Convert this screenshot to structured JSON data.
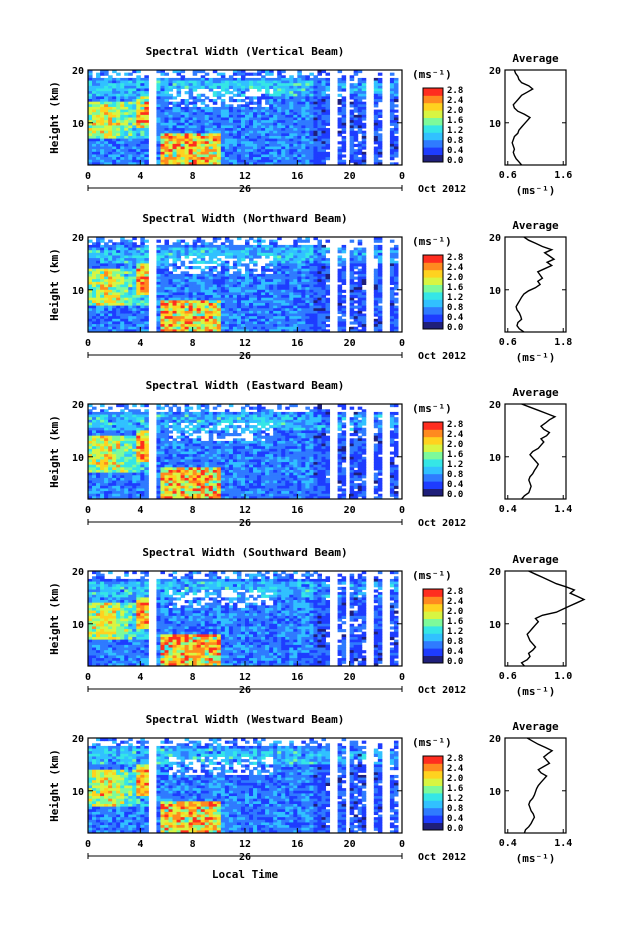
{
  "figure": {
    "xlabel": "Local Time",
    "date_label": "Oct 2012",
    "day_label": "26",
    "colorbar_unit": "(ms⁻¹)",
    "colorbar_ticks": [
      "0.0",
      "0.4",
      "0.8",
      "1.2",
      "1.6",
      "2.0",
      "2.4",
      "2.8"
    ],
    "colormap": [
      "#1f1f7a",
      "#1e3cff",
      "#2f7bff",
      "#31c1ff",
      "#35e6e6",
      "#7dfa9a",
      "#d8f542",
      "#ffd21f",
      "#ff8a1f",
      "#ff2d1f"
    ]
  },
  "chart_data": [
    {
      "type": "heatmap",
      "title": "Spectral Width (Vertical Beam)",
      "ylabel": "Height (km)",
      "xlim": [
        0,
        24
      ],
      "ylim": [
        2,
        20
      ],
      "xticks": [
        "0",
        "4",
        "8",
        "12",
        "16",
        "20",
        "0"
      ],
      "yticks": [
        "20",
        "10"
      ],
      "clim": [
        0,
        3.0
      ]
    },
    {
      "type": "line",
      "title": "Average",
      "xlabel": "(ms⁻¹)",
      "xticks": [
        "0.6",
        "1.6"
      ],
      "yticks": [
        "20",
        "10"
      ],
      "x": [
        0.85,
        0.8,
        0.75,
        0.72,
        0.7,
        0.72,
        0.7,
        0.68,
        0.7,
        0.72,
        0.78,
        0.8,
        0.85,
        0.9,
        0.95,
        1.0,
        0.9,
        0.78,
        0.72,
        0.7,
        0.75,
        0.8,
        0.85,
        0.95,
        1.05,
        0.98,
        0.85,
        0.8,
        0.78,
        0.74,
        0.72
      ],
      "y": [
        2,
        2.6,
        3.2,
        3.8,
        4.4,
        5,
        5.6,
        6.2,
        6.8,
        7.4,
        8,
        8.6,
        9.2,
        9.8,
        10.4,
        11,
        11.6,
        12.2,
        12.8,
        13.4,
        14,
        14.6,
        15.2,
        15.8,
        16.4,
        17,
        17.6,
        18.2,
        18.8,
        19.4,
        20
      ]
    },
    {
      "type": "heatmap",
      "title": "Spectral Width (Northward Beam)",
      "ylabel": "Height (km)",
      "xlim": [
        0,
        24
      ],
      "ylim": [
        2,
        20
      ],
      "xticks": [
        "0",
        "4",
        "8",
        "12",
        "16",
        "20",
        "0"
      ],
      "yticks": [
        "20",
        "10"
      ],
      "clim": [
        0,
        3.0
      ]
    },
    {
      "type": "line",
      "title": "Average",
      "xlabel": "(ms⁻¹)",
      "xticks": [
        "0.6",
        "1.8"
      ],
      "yticks": [
        "20",
        "10"
      ],
      "x": [
        0.95,
        0.85,
        0.8,
        0.82,
        0.9,
        0.88,
        0.85,
        0.8,
        0.78,
        0.82,
        0.86,
        0.9,
        0.95,
        1.05,
        1.2,
        1.3,
        1.25,
        1.35,
        1.3,
        1.25,
        1.4,
        1.55,
        1.45,
        1.6,
        1.5,
        1.4,
        1.55,
        1.35,
        1.2,
        1.05,
        0.95
      ],
      "y": [
        2,
        2.6,
        3.2,
        3.8,
        4.4,
        5,
        5.6,
        6.2,
        6.8,
        7.4,
        8,
        8.6,
        9.2,
        9.8,
        10.4,
        11,
        11.6,
        12.2,
        12.8,
        13.4,
        14,
        14.6,
        15.2,
        15.8,
        16.4,
        17,
        17.6,
        18.2,
        18.8,
        19.4,
        20
      ]
    },
    {
      "type": "heatmap",
      "title": "Spectral Width (Eastward Beam)",
      "ylabel": "Height (km)",
      "xlim": [
        0,
        24
      ],
      "ylim": [
        2,
        20
      ],
      "xticks": [
        "0",
        "4",
        "8",
        "12",
        "16",
        "20",
        "0"
      ],
      "yticks": [
        "20",
        "10"
      ],
      "clim": [
        0,
        3.0
      ]
    },
    {
      "type": "line",
      "title": "Average",
      "xlabel": "",
      "xticks": [
        "0.4",
        "1.4"
      ],
      "yticks": [
        "20",
        "10"
      ],
      "x": [
        0.65,
        0.7,
        0.78,
        0.8,
        0.82,
        0.8,
        0.78,
        0.8,
        0.85,
        0.88,
        0.92,
        0.95,
        0.9,
        0.85,
        0.8,
        0.85,
        0.95,
        1.0,
        1.05,
        1.0,
        1.1,
        1.15,
        1.05,
        1.0,
        1.08,
        1.15,
        1.25,
        1.1,
        0.95,
        0.8,
        0.65
      ],
      "y": [
        2,
        2.6,
        3.2,
        3.8,
        4.4,
        5,
        5.6,
        6.2,
        6.8,
        7.4,
        8,
        8.6,
        9.2,
        9.8,
        10.4,
        11,
        11.6,
        12.2,
        12.8,
        13.4,
        14,
        14.6,
        15.2,
        15.8,
        16.4,
        17,
        17.6,
        18.2,
        18.8,
        19.4,
        20
      ]
    },
    {
      "type": "heatmap",
      "title": "Spectral Width (Southward Beam)",
      "ylabel": "Height (km)",
      "xlim": [
        0,
        24
      ],
      "ylim": [
        2,
        20
      ],
      "xticks": [
        "0",
        "4",
        "8",
        "12",
        "16",
        "20",
        "0"
      ],
      "yticks": [
        "20",
        "10"
      ],
      "clim": [
        0,
        3.0
      ]
    },
    {
      "type": "line",
      "title": "Average",
      "xlabel": "(ms⁻¹)",
      "xticks": [
        "0.6",
        "1.0"
      ],
      "yticks": [
        "20",
        "10"
      ],
      "x": [
        0.72,
        0.7,
        0.74,
        0.76,
        0.75,
        0.78,
        0.8,
        0.78,
        0.76,
        0.75,
        0.74,
        0.76,
        0.78,
        0.8,
        0.82,
        0.8,
        0.85,
        0.95,
        1.0,
        1.05,
        1.1,
        1.15,
        1.1,
        1.05,
        1.08,
        1.02,
        0.95,
        0.9,
        0.85,
        0.8,
        0.75
      ],
      "y": [
        2,
        2.6,
        3.2,
        3.8,
        4.4,
        5,
        5.6,
        6.2,
        6.8,
        7.4,
        8,
        8.6,
        9.2,
        9.8,
        10.4,
        11,
        11.6,
        12.2,
        12.8,
        13.4,
        14,
        14.6,
        15.2,
        15.8,
        16.4,
        17,
        17.6,
        18.2,
        18.8,
        19.4,
        20
      ]
    },
    {
      "type": "heatmap",
      "title": "Spectral Width (Westward Beam)",
      "ylabel": "Height (km)",
      "xlim": [
        0,
        24
      ],
      "ylim": [
        2,
        20
      ],
      "xticks": [
        "0",
        "4",
        "8",
        "12",
        "16",
        "20",
        "0"
      ],
      "yticks": [
        "20",
        "10"
      ],
      "clim": [
        0,
        3.0
      ]
    },
    {
      "type": "line",
      "title": "Average",
      "xlabel": "(ms⁻¹)",
      "xticks": [
        "0.4",
        "1.4"
      ],
      "yticks": [
        "20",
        "10"
      ],
      "x": [
        0.7,
        0.72,
        0.78,
        0.82,
        0.85,
        0.88,
        0.86,
        0.82,
        0.8,
        0.78,
        0.8,
        0.85,
        0.88,
        0.9,
        0.92,
        0.95,
        1.0,
        1.05,
        1.1,
        1.0,
        0.95,
        1.05,
        1.15,
        1.1,
        1.05,
        1.12,
        1.2,
        1.08,
        0.95,
        0.85,
        0.75
      ],
      "y": [
        2,
        2.6,
        3.2,
        3.8,
        4.4,
        5,
        5.6,
        6.2,
        6.8,
        7.4,
        8,
        8.6,
        9.2,
        9.8,
        10.4,
        11,
        11.6,
        12.2,
        12.8,
        13.4,
        14,
        14.6,
        15.2,
        15.8,
        16.4,
        17,
        17.6,
        18.2,
        18.8,
        19.4,
        20
      ]
    }
  ]
}
